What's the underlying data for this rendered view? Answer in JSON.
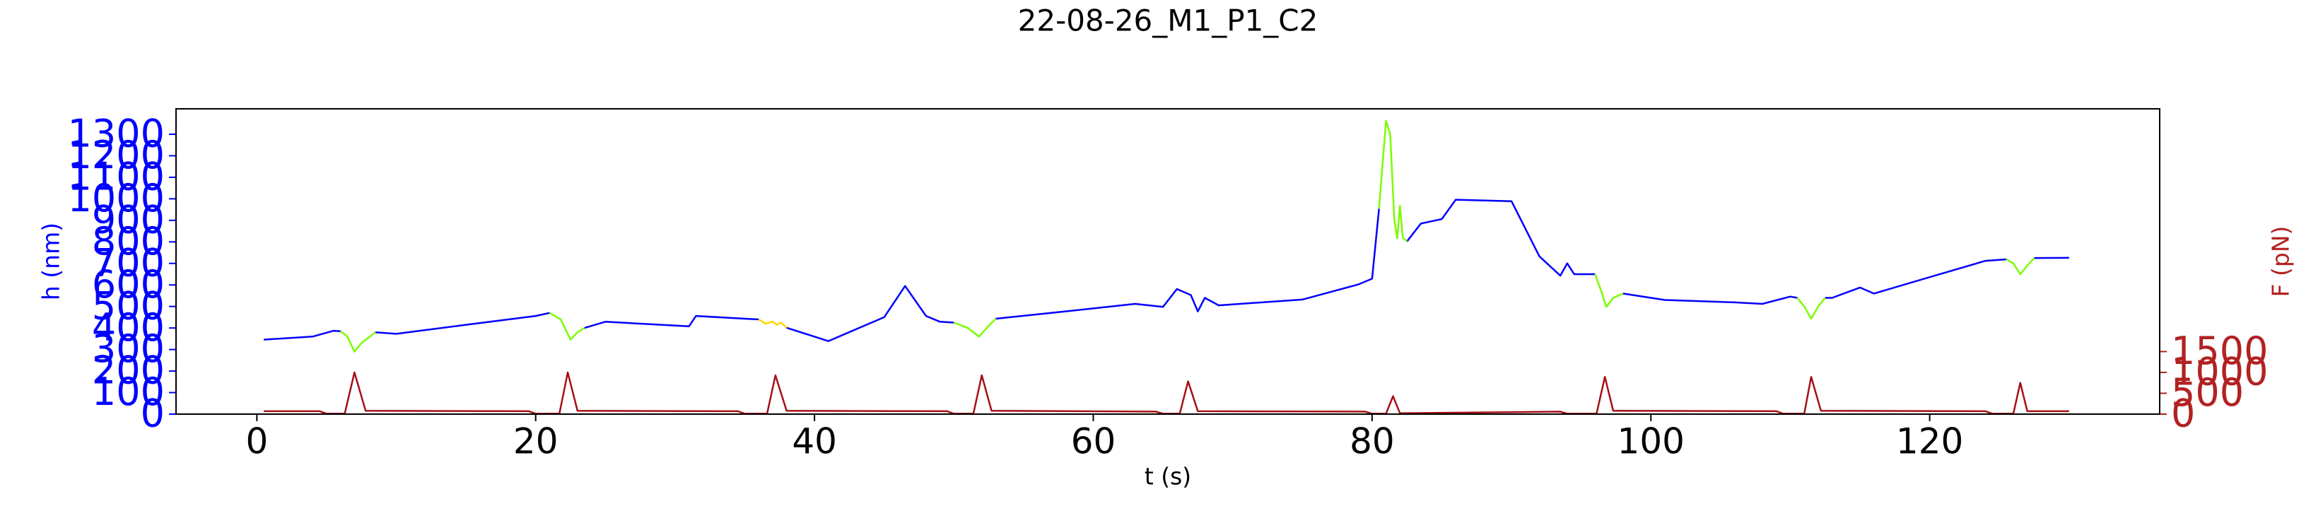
{
  "chart_data": {
    "type": "line",
    "title": "22-08-26_M1_P1_C2",
    "x_label": "t (s)",
    "y_label": "h (nm)",
    "y2_label": "F (pN)",
    "y_color": "#0000ff",
    "y2_color": "#b22222",
    "xlim": [
      -5.8,
      136.5
    ],
    "ylim": [
      0,
      1418
    ],
    "y2lim": [
      0,
      7320
    ],
    "xticks": [
      0,
      20,
      40,
      60,
      80,
      100,
      120
    ],
    "yticks": [
      0,
      100,
      200,
      300,
      400,
      500,
      600,
      700,
      800,
      900,
      1000,
      1100,
      1200,
      1300
    ],
    "y2ticks": [
      0,
      500,
      1000,
      1500
    ],
    "series": [
      {
        "color": "#0000ff",
        "x": [
          0.5,
          4,
          5.5,
          6,
          7,
          8.5,
          10,
          15,
          20,
          21,
          22,
          23.5,
          25,
          31,
          31.5,
          35,
          36,
          37,
          38,
          41,
          45,
          46.5,
          48,
          49,
          50,
          51.5,
          53,
          57,
          63,
          65,
          66,
          67,
          67.5,
          68,
          69,
          75,
          79,
          80,
          80.5,
          81.5,
          82.5,
          83.5,
          85,
          86,
          90,
          92,
          93.5,
          94,
          94.5,
          96,
          97,
          98,
          101,
          106,
          108,
          110,
          110.5,
          111.5,
          112.5,
          113,
          115,
          116,
          120,
          124,
          125.5,
          126.5,
          127.5,
          130
        ],
        "values": [
          346,
          360,
          387,
          385,
          null,
          380,
          373,
          415,
          456,
          470,
          null,
          400,
          429,
          408,
          456,
          443,
          440,
          null,
          401,
          339,
          450,
          595,
          456,
          429,
          425,
          null,
          443,
          470,
          512,
          498,
          581,
          553,
          477,
          540,
          505,
          532,
          602,
          629,
          954,
          null,
          802,
          885,
          906,
          996,
          989,
          733,
          643,
          700,
          650,
          650,
          null,
          560,
          530,
          519,
          512,
          546,
          540,
          null,
          540,
          540,
          588,
          560,
          636,
          712,
          719,
          null,
          725,
          726
        ]
      },
      {
        "color": "#7cfc00",
        "x": [
          6,
          6.5,
          7,
          7.5,
          8.5,
          14,
          21,
          21.8,
          22.5,
          23,
          23.5,
          37,
          50,
          51,
          51.8,
          52.5,
          53,
          66,
          80.5,
          81,
          81.3,
          81.6,
          81.8,
          82,
          82.2,
          82.5,
          89,
          96,
          96.5,
          96.8,
          97.3,
          98,
          104,
          110.5,
          111,
          111.5,
          112,
          112.5,
          119,
          125.5,
          126,
          126.5,
          127,
          127.5
        ],
        "values": [
          385,
          360,
          290,
          330,
          380,
          null,
          470,
          440,
          346,
          380,
          400,
          null,
          425,
          400,
          360,
          410,
          443,
          null,
          954,
          1362,
          1300,
          900,
          816,
          968,
          820,
          802,
          null,
          650,
          560,
          498,
          540,
          560,
          null,
          540,
          500,
          443,
          500,
          540,
          null,
          719,
          700,
          650,
          690,
          725
        ]
      },
      {
        "color": "#ffd700",
        "x": [
          36,
          36.5,
          37,
          37.3,
          37.6,
          38
        ],
        "values": [
          440,
          420,
          430,
          415,
          425,
          401
        ]
      },
      {
        "color": "#a50f15",
        "axis": "y2",
        "x": [
          0.5,
          4.5,
          5,
          6.3,
          7,
          7.8,
          19.5,
          20,
          21.7,
          22.3,
          23,
          34.5,
          35,
          36.6,
          37.2,
          38,
          49.5,
          50,
          51.4,
          52,
          52.7,
          64.5,
          65,
          66.2,
          66.8,
          67.5,
          79.5,
          80,
          81,
          81.5,
          82,
          93.5,
          94,
          96.1,
          96.7,
          97.3,
          109,
          109.5,
          111,
          111.5,
          112.2,
          124,
          124.5,
          126,
          126.5,
          127,
          130
        ],
        "values": [
          70,
          70,
          10,
          10,
          1000,
          80,
          70,
          10,
          10,
          1000,
          80,
          70,
          10,
          10,
          930,
          80,
          70,
          10,
          10,
          930,
          80,
          60,
          10,
          10,
          786,
          70,
          60,
          10,
          10,
          430,
          20,
          60,
          10,
          10,
          893,
          80,
          70,
          10,
          10,
          893,
          80,
          70,
          10,
          10,
          750,
          70,
          70
        ]
      }
    ]
  }
}
